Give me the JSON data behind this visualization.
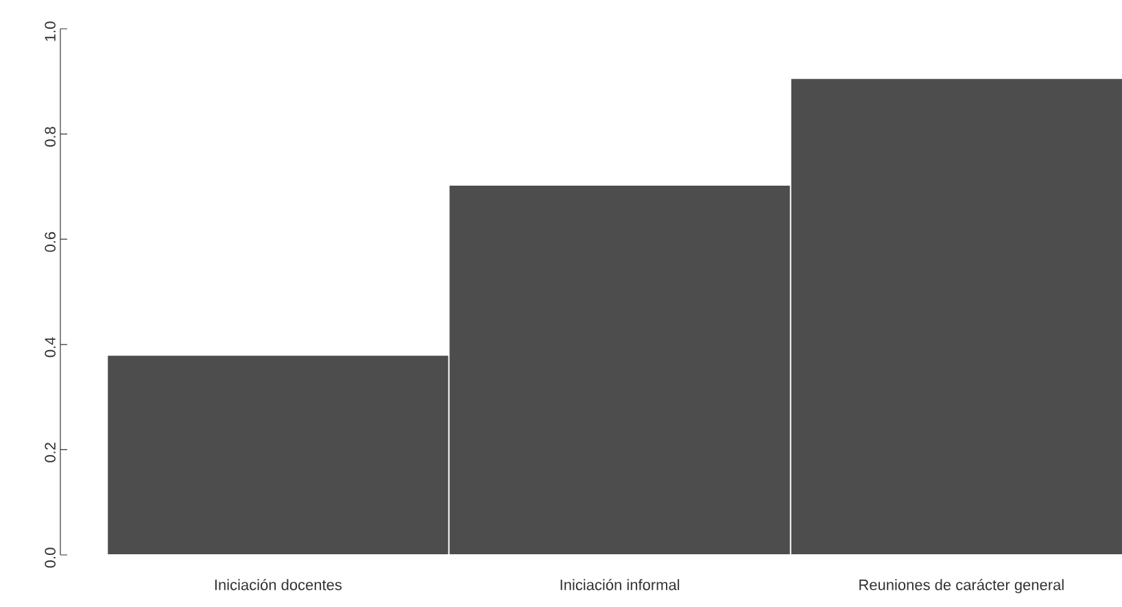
{
  "chart_data": {
    "type": "bar",
    "categories": [
      "Iniciación docentes",
      "Iniciación informal",
      "Reuniones de carácter general"
    ],
    "values": [
      0.38,
      0.703,
      0.906
    ],
    "color": "#4d4d4d",
    "ylim": [
      0,
      1
    ],
    "yticks": [
      {
        "value": 0,
        "label": "0.0"
      },
      {
        "value": 0.2,
        "label": "0.2"
      },
      {
        "value": 0.4,
        "label": "0.4"
      },
      {
        "value": 0.6,
        "label": "0.6"
      },
      {
        "value": 0.8,
        "label": "0.8"
      },
      {
        "value": 1,
        "label": "1.0"
      }
    ],
    "grid": false
  }
}
